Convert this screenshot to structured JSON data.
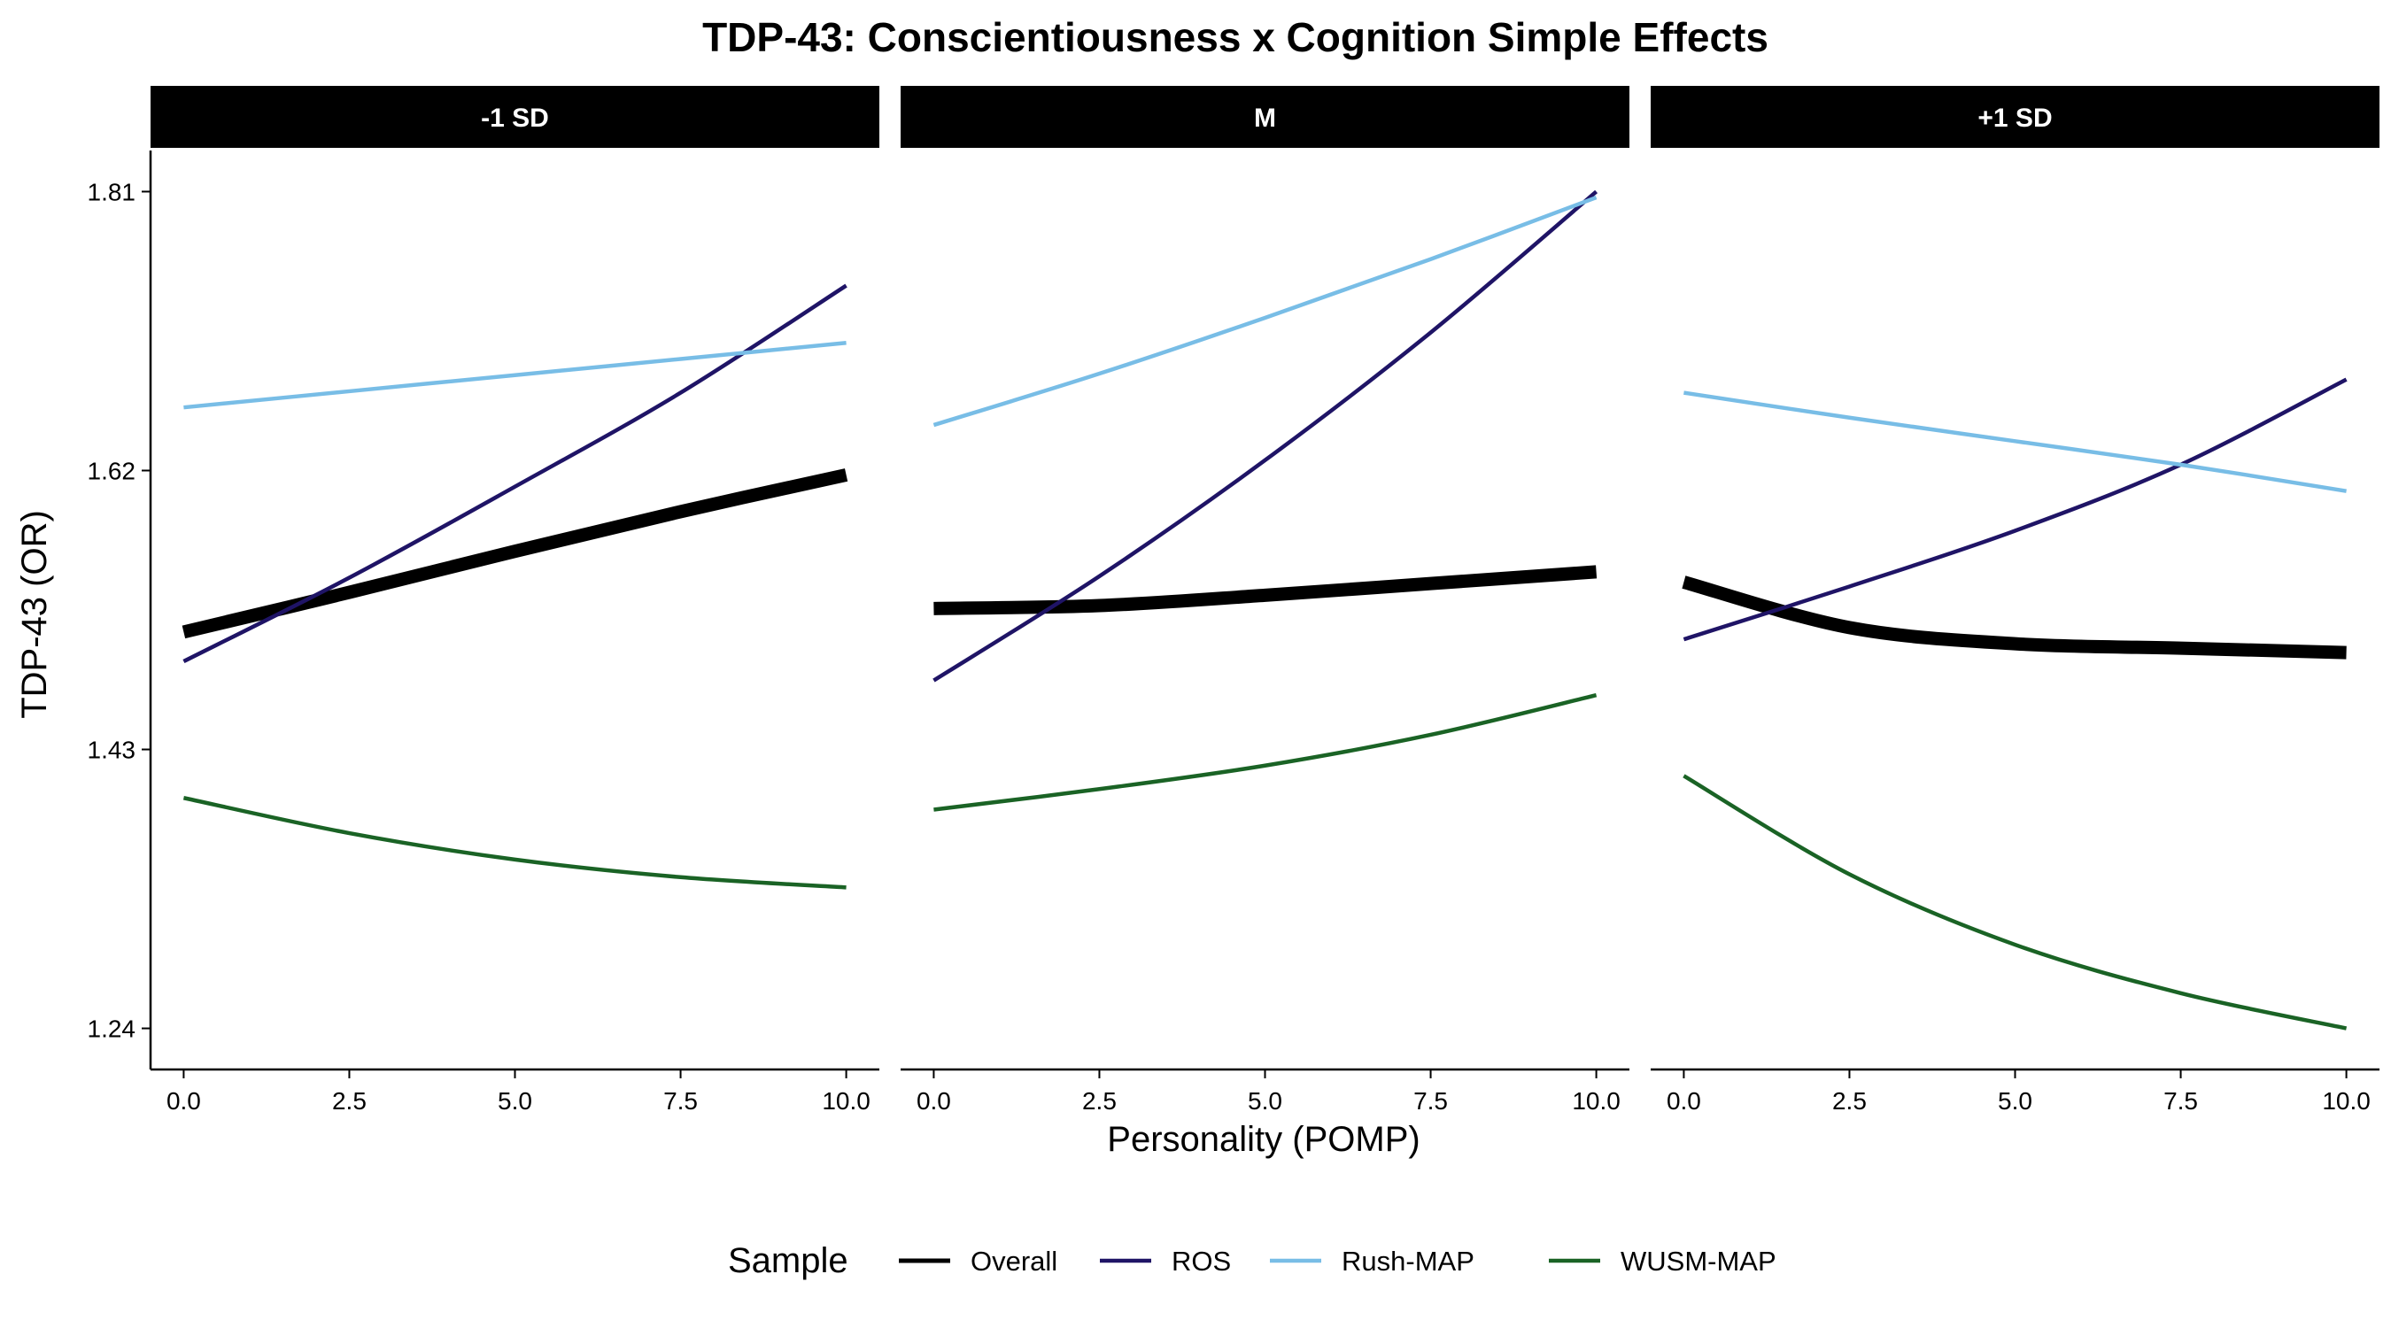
{
  "chart_data": {
    "type": "line",
    "title": "TDP-43: Conscientiousness x Cognition Simple Effects",
    "xlabel": "Personality (POMP)",
    "ylabel": "TDP-43 (OR)",
    "xlim": [
      -0.5,
      10.5
    ],
    "ylim": [
      1.212,
      1.838
    ],
    "x_ticks": [
      0,
      2.5,
      5,
      7.5,
      10
    ],
    "x_tick_labels": [
      "0.0",
      "2.5",
      "5.0",
      "7.5",
      "10.0"
    ],
    "y_ticks": [
      1.24,
      1.43,
      1.62,
      1.81
    ],
    "y_tick_labels": [
      "1.24",
      "1.43",
      "1.62",
      "1.81"
    ],
    "grid": false,
    "legend": {
      "title": "Sample",
      "position": "bottom",
      "entries": [
        "Overall",
        "ROS",
        "Rush-MAP",
        "WUSM-MAP"
      ]
    },
    "series_styles": [
      {
        "name": "Overall",
        "color": "#000000",
        "width": "thick"
      },
      {
        "name": "ROS",
        "color": "#1f1466",
        "width": "thin"
      },
      {
        "name": "Rush-MAP",
        "color": "#78bde6",
        "width": "thin"
      },
      {
        "name": "WUSM-MAP",
        "color": "#1a6325",
        "width": "thin"
      }
    ],
    "x": [
      0,
      2.5,
      5,
      7.5,
      10
    ],
    "panels": [
      {
        "label": "-1 SD",
        "series": [
          {
            "name": "Overall",
            "values": [
              1.51,
              1.537,
              1.565,
              1.592,
              1.617
            ]
          },
          {
            "name": "ROS",
            "values": [
              1.49,
              1.547,
              1.609,
              1.673,
              1.746
            ]
          },
          {
            "name": "Rush-MAP",
            "values": [
              1.663,
              1.674,
              1.685,
              1.696,
              1.707
            ]
          },
          {
            "name": "WUSM-MAP",
            "values": [
              1.397,
              1.373,
              1.355,
              1.343,
              1.336
            ]
          }
        ]
      },
      {
        "label": "M",
        "series": [
          {
            "name": "Overall",
            "values": [
              1.526,
              1.528,
              1.535,
              1.543,
              1.551
            ]
          },
          {
            "name": "ROS",
            "values": [
              1.477,
              1.548,
              1.627,
              1.714,
              1.81
            ]
          },
          {
            "name": "Rush-MAP",
            "values": [
              1.651,
              1.686,
              1.724,
              1.764,
              1.806
            ]
          },
          {
            "name": "WUSM-MAP",
            "values": [
              1.389,
              1.403,
              1.419,
              1.44,
              1.467
            ]
          }
        ]
      },
      {
        "label": "+1 SD",
        "series": [
          {
            "name": "Overall",
            "values": [
              1.544,
              1.513,
              1.502,
              1.499,
              1.496
            ]
          },
          {
            "name": "ROS",
            "values": [
              1.505,
              1.541,
              1.579,
              1.624,
              1.682
            ]
          },
          {
            "name": "Rush-MAP",
            "values": [
              1.673,
              1.656,
              1.64,
              1.624,
              1.606
            ]
          },
          {
            "name": "WUSM-MAP",
            "values": [
              1.412,
              1.345,
              1.297,
              1.264,
              1.24
            ]
          }
        ]
      }
    ]
  }
}
